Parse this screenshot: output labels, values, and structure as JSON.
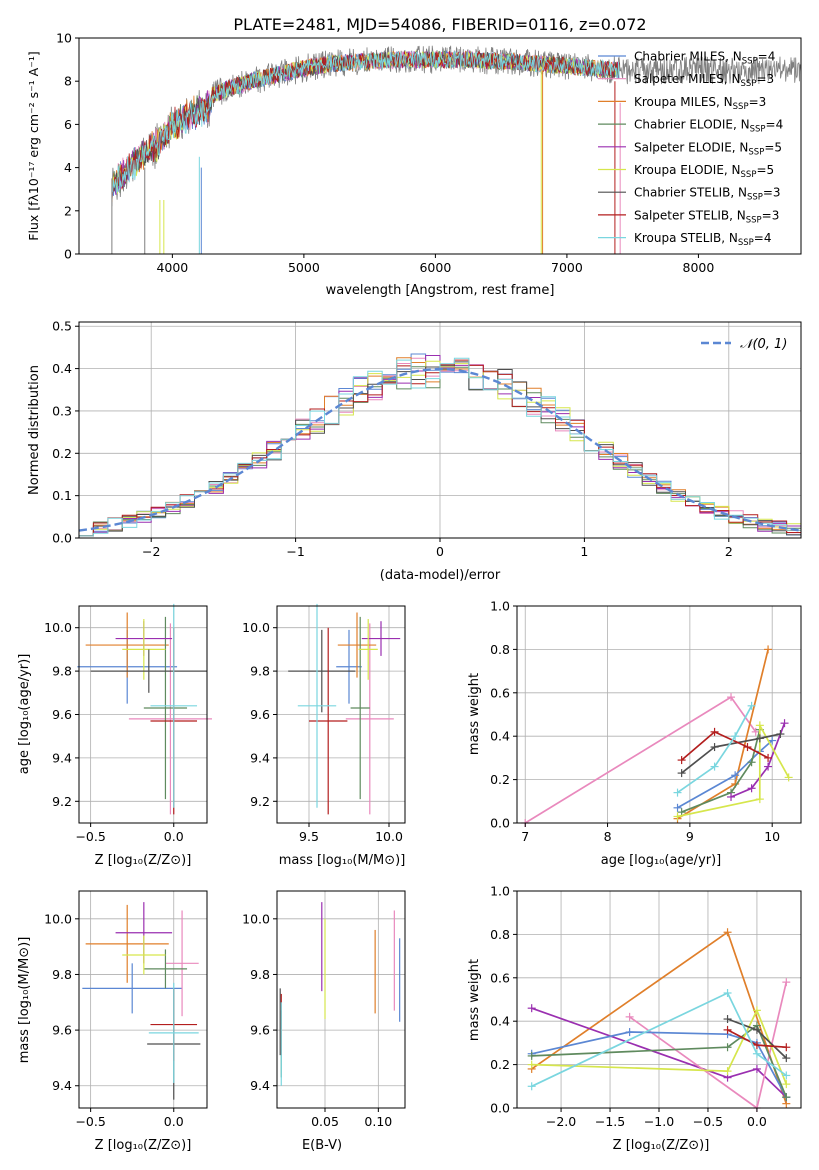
{
  "colors": {
    "chabrier_miles": "#5b87d3",
    "salpeter_miles": "#e989bd",
    "kroupa_miles": "#e07f2a",
    "chabrier_elodie": "#5f8a5e",
    "salpeter_elodie": "#9a2fb0",
    "kroupa_elodie": "#d6e64c",
    "chabrier_stelib": "#4f4f4f",
    "salpeter_stelib": "#b31e1e",
    "kroupa_stelib": "#7ad6df",
    "grey": "#7f7f7f"
  },
  "chart_data": [
    {
      "id": "spectrum",
      "type": "line",
      "title": "PLATE=2481, MJD=54086, FIBERID=0116, z=0.072",
      "xlabel": "wavelength [Angstrom, rest frame]",
      "ylabel": "Flux [fλ10⁻¹⁷ erg cm⁻² s⁻¹ A⁻¹]",
      "xlim": [
        3290,
        8780
      ],
      "ylim": [
        0,
        10
      ],
      "xticks": [
        "4000",
        "5000",
        "6000",
        "7000",
        "8000"
      ],
      "yticks": [
        "0",
        "2",
        "4",
        "6",
        "8",
        "10"
      ],
      "legend_position": "right",
      "legend": [
        "Chabrier MILES, N_SSP=4",
        "Salpeter MILES, N_SSP=3",
        "Kroupa MILES, N_SSP=3",
        "Chabrier ELODIE, N_SSP=4",
        "Salpeter ELODIE, N_SSP=5",
        "Kroupa ELODIE, N_SSP=5",
        "Chabrier STELIB, N_SSP=3",
        "Salpeter STELIB, N_SSP=3",
        "Kroupa STELIB, N_SSP=4"
      ],
      "continuum": {
        "x": [
          3540,
          3700,
          3900,
          4000,
          4200,
          4400,
          4600,
          4800,
          5000,
          5200,
          5400,
          5600,
          5800,
          6000,
          6200,
          6400,
          6600,
          6800,
          7000,
          7200,
          7400
        ],
        "y": [
          3.6,
          4.6,
          5.6,
          6.4,
          7.1,
          7.6,
          8.0,
          8.3,
          8.6,
          8.8,
          8.9,
          8.95,
          9.0,
          9.0,
          9.0,
          8.95,
          8.9,
          8.8,
          8.7,
          8.6,
          8.5
        ]
      },
      "data_range": [
        3540,
        8780
      ],
      "model_range": [
        3540,
        7400
      ]
    },
    {
      "id": "residuals",
      "type": "bar",
      "xlabel": "(data-model)/error",
      "ylabel": "Normed distribution",
      "xlim": [
        -2.5,
        2.5
      ],
      "ylim": [
        0,
        0.51
      ],
      "xticks": [
        "−2",
        "−1",
        "0",
        "1",
        "2"
      ],
      "yticks": [
        "0.0",
        "0.1",
        "0.2",
        "0.3",
        "0.4",
        "0.5"
      ],
      "legend": [
        "𝒩(0, 1)"
      ],
      "legend_position": "top-right",
      "bin_width": 0.1,
      "n_bins": 50
    },
    {
      "id": "age-vs-z",
      "type": "scatter",
      "xlabel": "Z [log₁₀(Z/Z⊙)]",
      "ylabel": "age  [log₁₀(age/yr)]",
      "xlim": [
        -0.57,
        0.2
      ],
      "ylim": [
        9.1,
        10.1
      ],
      "xticks": [
        -0.5,
        0.0
      ],
      "xtick_labels": [
        "−0.5",
        "0.0"
      ],
      "yticks": [
        9.2,
        9.4,
        9.6,
        9.8,
        10.0
      ],
      "ytick_labels": [
        "9.2",
        "9.4",
        "9.6",
        "9.8",
        "10.0"
      ],
      "points": [
        {
          "series": "chabrier_miles",
          "x": -0.28,
          "y": 9.82,
          "xerr": 0.3,
          "yerr": 0.17
        },
        {
          "series": "salpeter_miles",
          "x": -0.02,
          "y": 9.58,
          "xerr": 0.25,
          "yerr": 0.44
        },
        {
          "series": "kroupa_miles",
          "x": -0.28,
          "y": 9.92,
          "xerr": 0.25,
          "yerr": 0.15
        },
        {
          "series": "chabrier_elodie",
          "x": -0.05,
          "y": 9.63,
          "xerr": 0.13,
          "yerr": 0.42
        },
        {
          "series": "salpeter_elodie",
          "x": -0.18,
          "y": 9.95,
          "xerr": 0.17,
          "yerr": 0.08
        },
        {
          "series": "kroupa_elodie",
          "x": -0.18,
          "y": 9.9,
          "xerr": 0.13,
          "yerr": 0.14
        },
        {
          "series": "chabrier_stelib",
          "x": -0.15,
          "y": 9.8,
          "xerr": 0.35,
          "yerr": 0.1
        },
        {
          "series": "salpeter_stelib",
          "x": 0.0,
          "y": 9.57,
          "xerr": 0.14,
          "yerr": 0.43
        },
        {
          "series": "kroupa_stelib",
          "x": 0.0,
          "y": 9.64,
          "xerr": 0.14,
          "yerr": 0.47
        }
      ]
    },
    {
      "id": "age-vs-mass",
      "type": "scatter",
      "xlabel": "mass [log₁₀(M/M⊙)]",
      "ylabel": "",
      "xlim": [
        9.3,
        10.1
      ],
      "ylim": [
        9.1,
        10.1
      ],
      "xticks": [
        9.5,
        10.0
      ],
      "xtick_labels": [
        "9.5",
        "10.0"
      ],
      "yticks": [
        9.2,
        9.4,
        9.6,
        9.8,
        10.0
      ],
      "ytick_labels": [
        "9.2",
        "9.4",
        "9.6",
        "9.8",
        "10.0"
      ],
      "points": [
        {
          "series": "chabrier_miles",
          "x": 9.75,
          "y": 9.82,
          "xerr": 0.08,
          "yerr": 0.17
        },
        {
          "series": "salpeter_miles",
          "x": 9.88,
          "y": 9.58,
          "xerr": 0.15,
          "yerr": 0.44
        },
        {
          "series": "kroupa_miles",
          "x": 9.8,
          "y": 9.92,
          "xerr": 0.12,
          "yerr": 0.15
        },
        {
          "series": "chabrier_elodie",
          "x": 9.82,
          "y": 9.63,
          "xerr": 0.06,
          "yerr": 0.42
        },
        {
          "series": "salpeter_elodie",
          "x": 9.95,
          "y": 9.95,
          "xerr": 0.12,
          "yerr": 0.08
        },
        {
          "series": "kroupa_elodie",
          "x": 9.87,
          "y": 9.9,
          "xerr": 0.06,
          "yerr": 0.14
        },
        {
          "series": "chabrier_stelib",
          "x": 9.58,
          "y": 9.8,
          "xerr": 0.21,
          "yerr": 0.19
        },
        {
          "series": "salpeter_stelib",
          "x": 9.62,
          "y": 9.57,
          "xerr": 0.12,
          "yerr": 0.43
        },
        {
          "series": "kroupa_stelib",
          "x": 9.55,
          "y": 9.64,
          "xerr": 0.12,
          "yerr": 0.47
        }
      ]
    },
    {
      "id": "weight-vs-age",
      "type": "line",
      "xlabel": "age  [log₁₀(age/yr)]",
      "ylabel": "mass weight",
      "xlim": [
        6.9,
        10.35
      ],
      "ylim": [
        0,
        1.0
      ],
      "xticks": [
        7,
        8,
        9,
        10
      ],
      "xtick_labels": [
        "7",
        "8",
        "9",
        "10"
      ],
      "yticks": [
        0,
        0.2,
        0.4,
        0.6,
        0.8,
        1.0
      ],
      "ytick_labels": [
        "0.0",
        "0.2",
        "0.4",
        "0.6",
        "0.8",
        "1.0"
      ],
      "series": [
        {
          "key": "salpeter_miles",
          "x": [
            7.0,
            9.5,
            9.8
          ],
          "y": [
            0.0,
            0.58,
            0.42
          ]
        },
        {
          "key": "kroupa_miles",
          "x": [
            8.85,
            9.55,
            9.95
          ],
          "y": [
            0.02,
            0.18,
            0.8
          ]
        },
        {
          "key": "chabrier_miles",
          "x": [
            8.85,
            9.55,
            9.85,
            10.0
          ],
          "y": [
            0.07,
            0.22,
            0.33,
            0.38
          ]
        },
        {
          "key": "chabrier_elodie",
          "x": [
            8.9,
            9.5,
            9.75,
            9.85
          ],
          "y": [
            0.05,
            0.14,
            0.28,
            0.43
          ]
        },
        {
          "key": "salpeter_elodie",
          "x": [
            9.5,
            9.75,
            9.95,
            10.15
          ],
          "y": [
            0.12,
            0.16,
            0.26,
            0.46
          ]
        },
        {
          "key": "kroupa_elodie",
          "x": [
            8.85,
            9.85,
            9.85,
            10.2
          ],
          "y": [
            0.03,
            0.11,
            0.45,
            0.21
          ]
        },
        {
          "key": "chabrier_stelib",
          "x": [
            8.9,
            9.3,
            9.85,
            10.1
          ],
          "y": [
            0.23,
            0.35,
            0.39,
            0.41
          ]
        },
        {
          "key": "salpeter_stelib",
          "x": [
            8.9,
            9.3,
            9.7,
            9.95
          ],
          "y": [
            0.29,
            0.42,
            0.35,
            0.3
          ]
        },
        {
          "key": "kroupa_stelib",
          "x": [
            8.85,
            9.3,
            9.55,
            9.75
          ],
          "y": [
            0.14,
            0.26,
            0.4,
            0.54
          ]
        }
      ]
    },
    {
      "id": "mass-vs-z",
      "type": "scatter",
      "xlabel": "Z [log₁₀(Z/Z⊙)]",
      "ylabel": "mass [log₁₀(M/M⊙)]",
      "xlim": [
        -0.57,
        0.2
      ],
      "ylim": [
        9.32,
        10.1
      ],
      "xticks": [
        -0.5,
        0.0
      ],
      "xtick_labels": [
        "−0.5",
        "0.0"
      ],
      "yticks": [
        9.4,
        9.6,
        9.8,
        10.0
      ],
      "ytick_labels": [
        "9.4",
        "9.6",
        "9.8",
        "10.0"
      ],
      "points": [
        {
          "series": "chabrier_miles",
          "x": -0.25,
          "y": 9.75,
          "xerr": 0.3,
          "yerr": 0.09
        },
        {
          "series": "salpeter_miles",
          "x": 0.05,
          "y": 9.84,
          "xerr": 0.1,
          "yerr": 0.19
        },
        {
          "series": "kroupa_miles",
          "x": -0.28,
          "y": 9.91,
          "xerr": 0.25,
          "yerr": 0.14
        },
        {
          "series": "chabrier_elodie",
          "x": -0.05,
          "y": 9.82,
          "xerr": 0.13,
          "yerr": 0.07
        },
        {
          "series": "salpeter_elodie",
          "x": -0.18,
          "y": 9.95,
          "xerr": 0.17,
          "yerr": 0.11
        },
        {
          "series": "kroupa_elodie",
          "x": -0.18,
          "y": 9.87,
          "xerr": 0.13,
          "yerr": 0.07
        },
        {
          "series": "chabrier_stelib",
          "x": 0.0,
          "y": 9.55,
          "xerr": 0.16,
          "yerr": 0.2
        },
        {
          "series": "salpeter_stelib",
          "x": 0.0,
          "y": 9.62,
          "xerr": 0.14,
          "yerr": 0.13
        },
        {
          "series": "kroupa_stelib",
          "x": 0.0,
          "y": 9.59,
          "xerr": 0.15,
          "yerr": 0.18
        }
      ]
    },
    {
      "id": "mass-vs-ebv",
      "type": "scatter",
      "xlabel": "E(B-V)",
      "ylabel": "",
      "xlim": [
        0.005,
        0.125
      ],
      "ylim": [
        9.32,
        10.1
      ],
      "xticks": [
        0.05,
        0.1
      ],
      "xtick_labels": [
        "0.05",
        "0.10"
      ],
      "yticks": [
        9.4,
        9.6,
        9.8,
        10.0
      ],
      "ytick_labels": [
        "9.4",
        "9.6",
        "9.8",
        "10.0"
      ],
      "points": [
        {
          "series": "chabrier_miles",
          "x": 0.12,
          "y": 9.78,
          "yerr": 0.15
        },
        {
          "series": "salpeter_miles",
          "x": 0.115,
          "y": 9.85,
          "yerr": 0.18
        },
        {
          "series": "kroupa_miles",
          "x": 0.097,
          "y": 9.81,
          "yerr": 0.15
        },
        {
          "series": "chabrier_elodie",
          "x": 0.009,
          "y": 9.55,
          "yerr": 0.12
        },
        {
          "series": "salpeter_elodie",
          "x": 0.047,
          "y": 9.9,
          "yerr": 0.16
        },
        {
          "series": "kroupa_elodie",
          "x": 0.05,
          "y": 9.82,
          "yerr": 0.18
        },
        {
          "series": "chabrier_stelib",
          "x": 0.008,
          "y": 9.63,
          "yerr": 0.12
        },
        {
          "series": "salpeter_stelib",
          "x": 0.009,
          "y": 9.62,
          "yerr": 0.11
        },
        {
          "series": "kroupa_stelib",
          "x": 0.009,
          "y": 9.55,
          "yerr": 0.15
        }
      ]
    },
    {
      "id": "weight-vs-z",
      "type": "line",
      "xlabel": "Z [log₁₀(Z/Z⊙)]",
      "ylabel": "mass weight",
      "xlim": [
        -2.45,
        0.45
      ],
      "ylim": [
        0,
        1.0
      ],
      "xticks": [
        -2.0,
        -1.5,
        -1.0,
        -0.5,
        0.0
      ],
      "xtick_labels": [
        "−2.0",
        "−1.5",
        "−1.0",
        "−0.5",
        "0.0"
      ],
      "yticks": [
        0,
        0.2,
        0.4,
        0.6,
        0.8,
        1.0
      ],
      "ytick_labels": [
        "0.0",
        "0.2",
        "0.4",
        "0.6",
        "0.8",
        "1.0"
      ],
      "series": [
        {
          "key": "kroupa_miles",
          "x": [
            -2.3,
            -0.3,
            0.3
          ],
          "y": [
            0.18,
            0.81,
            0.02
          ]
        },
        {
          "key": "salpeter_elodie",
          "x": [
            -2.3,
            -0.3,
            0.0,
            0.3
          ],
          "y": [
            0.46,
            0.14,
            0.18,
            0.05
          ]
        },
        {
          "key": "salpeter_miles",
          "x": [
            -1.3,
            0.0,
            0.3
          ],
          "y": [
            0.42,
            0.0,
            0.58
          ]
        },
        {
          "key": "chabrier_miles",
          "x": [
            -2.3,
            -1.3,
            -0.3,
            0.0,
            0.3
          ],
          "y": [
            0.25,
            0.35,
            0.34,
            0.3,
            0.05
          ]
        },
        {
          "key": "chabrier_elodie",
          "x": [
            -2.3,
            -0.3,
            0.0,
            0.3
          ],
          "y": [
            0.24,
            0.28,
            0.38,
            0.05
          ]
        },
        {
          "key": "kroupa_elodie",
          "x": [
            -2.3,
            -0.3,
            0.0,
            0.3
          ],
          "y": [
            0.2,
            0.17,
            0.45,
            0.11
          ]
        },
        {
          "key": "chabrier_stelib",
          "x": [
            -0.3,
            0.0,
            0.3
          ],
          "y": [
            0.41,
            0.36,
            0.23
          ]
        },
        {
          "key": "salpeter_stelib",
          "x": [
            -0.3,
            0.0,
            0.3
          ],
          "y": [
            0.36,
            0.29,
            0.28
          ]
        },
        {
          "key": "kroupa_stelib",
          "x": [
            -2.3,
            -0.3,
            0.0,
            0.3
          ],
          "y": [
            0.1,
            0.53,
            0.25,
            0.15
          ]
        }
      ]
    }
  ]
}
